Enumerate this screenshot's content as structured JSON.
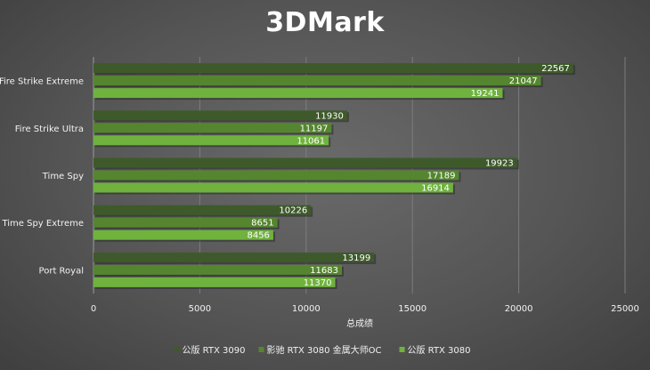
{
  "chart_data": {
    "type": "bar",
    "orientation": "horizontal",
    "title": "3DMark",
    "xlabel": "总成绩",
    "ylabel": "",
    "xlim": [
      0,
      25000
    ],
    "xticks": [
      0,
      5000,
      10000,
      15000,
      20000,
      25000
    ],
    "grid": true,
    "legend_position": "bottom",
    "categories": [
      "Fire Strike Extreme",
      "Fire Strike Ultra",
      "Time Spy",
      "Time Spy Extreme",
      "Port Royal"
    ],
    "series": [
      {
        "name": "公版 RTX 3090",
        "color": "#3e5a2b",
        "values": [
          22567,
          11930,
          19923,
          10226,
          13199
        ]
      },
      {
        "name": "影驰 RTX 3080 金属大师OC",
        "color": "#55862f",
        "values": [
          21047,
          11197,
          17189,
          8651,
          11683
        ]
      },
      {
        "name": "公版 RTX 3080",
        "color": "#6fb23e",
        "values": [
          19241,
          11061,
          16914,
          8456,
          11370
        ]
      }
    ]
  }
}
